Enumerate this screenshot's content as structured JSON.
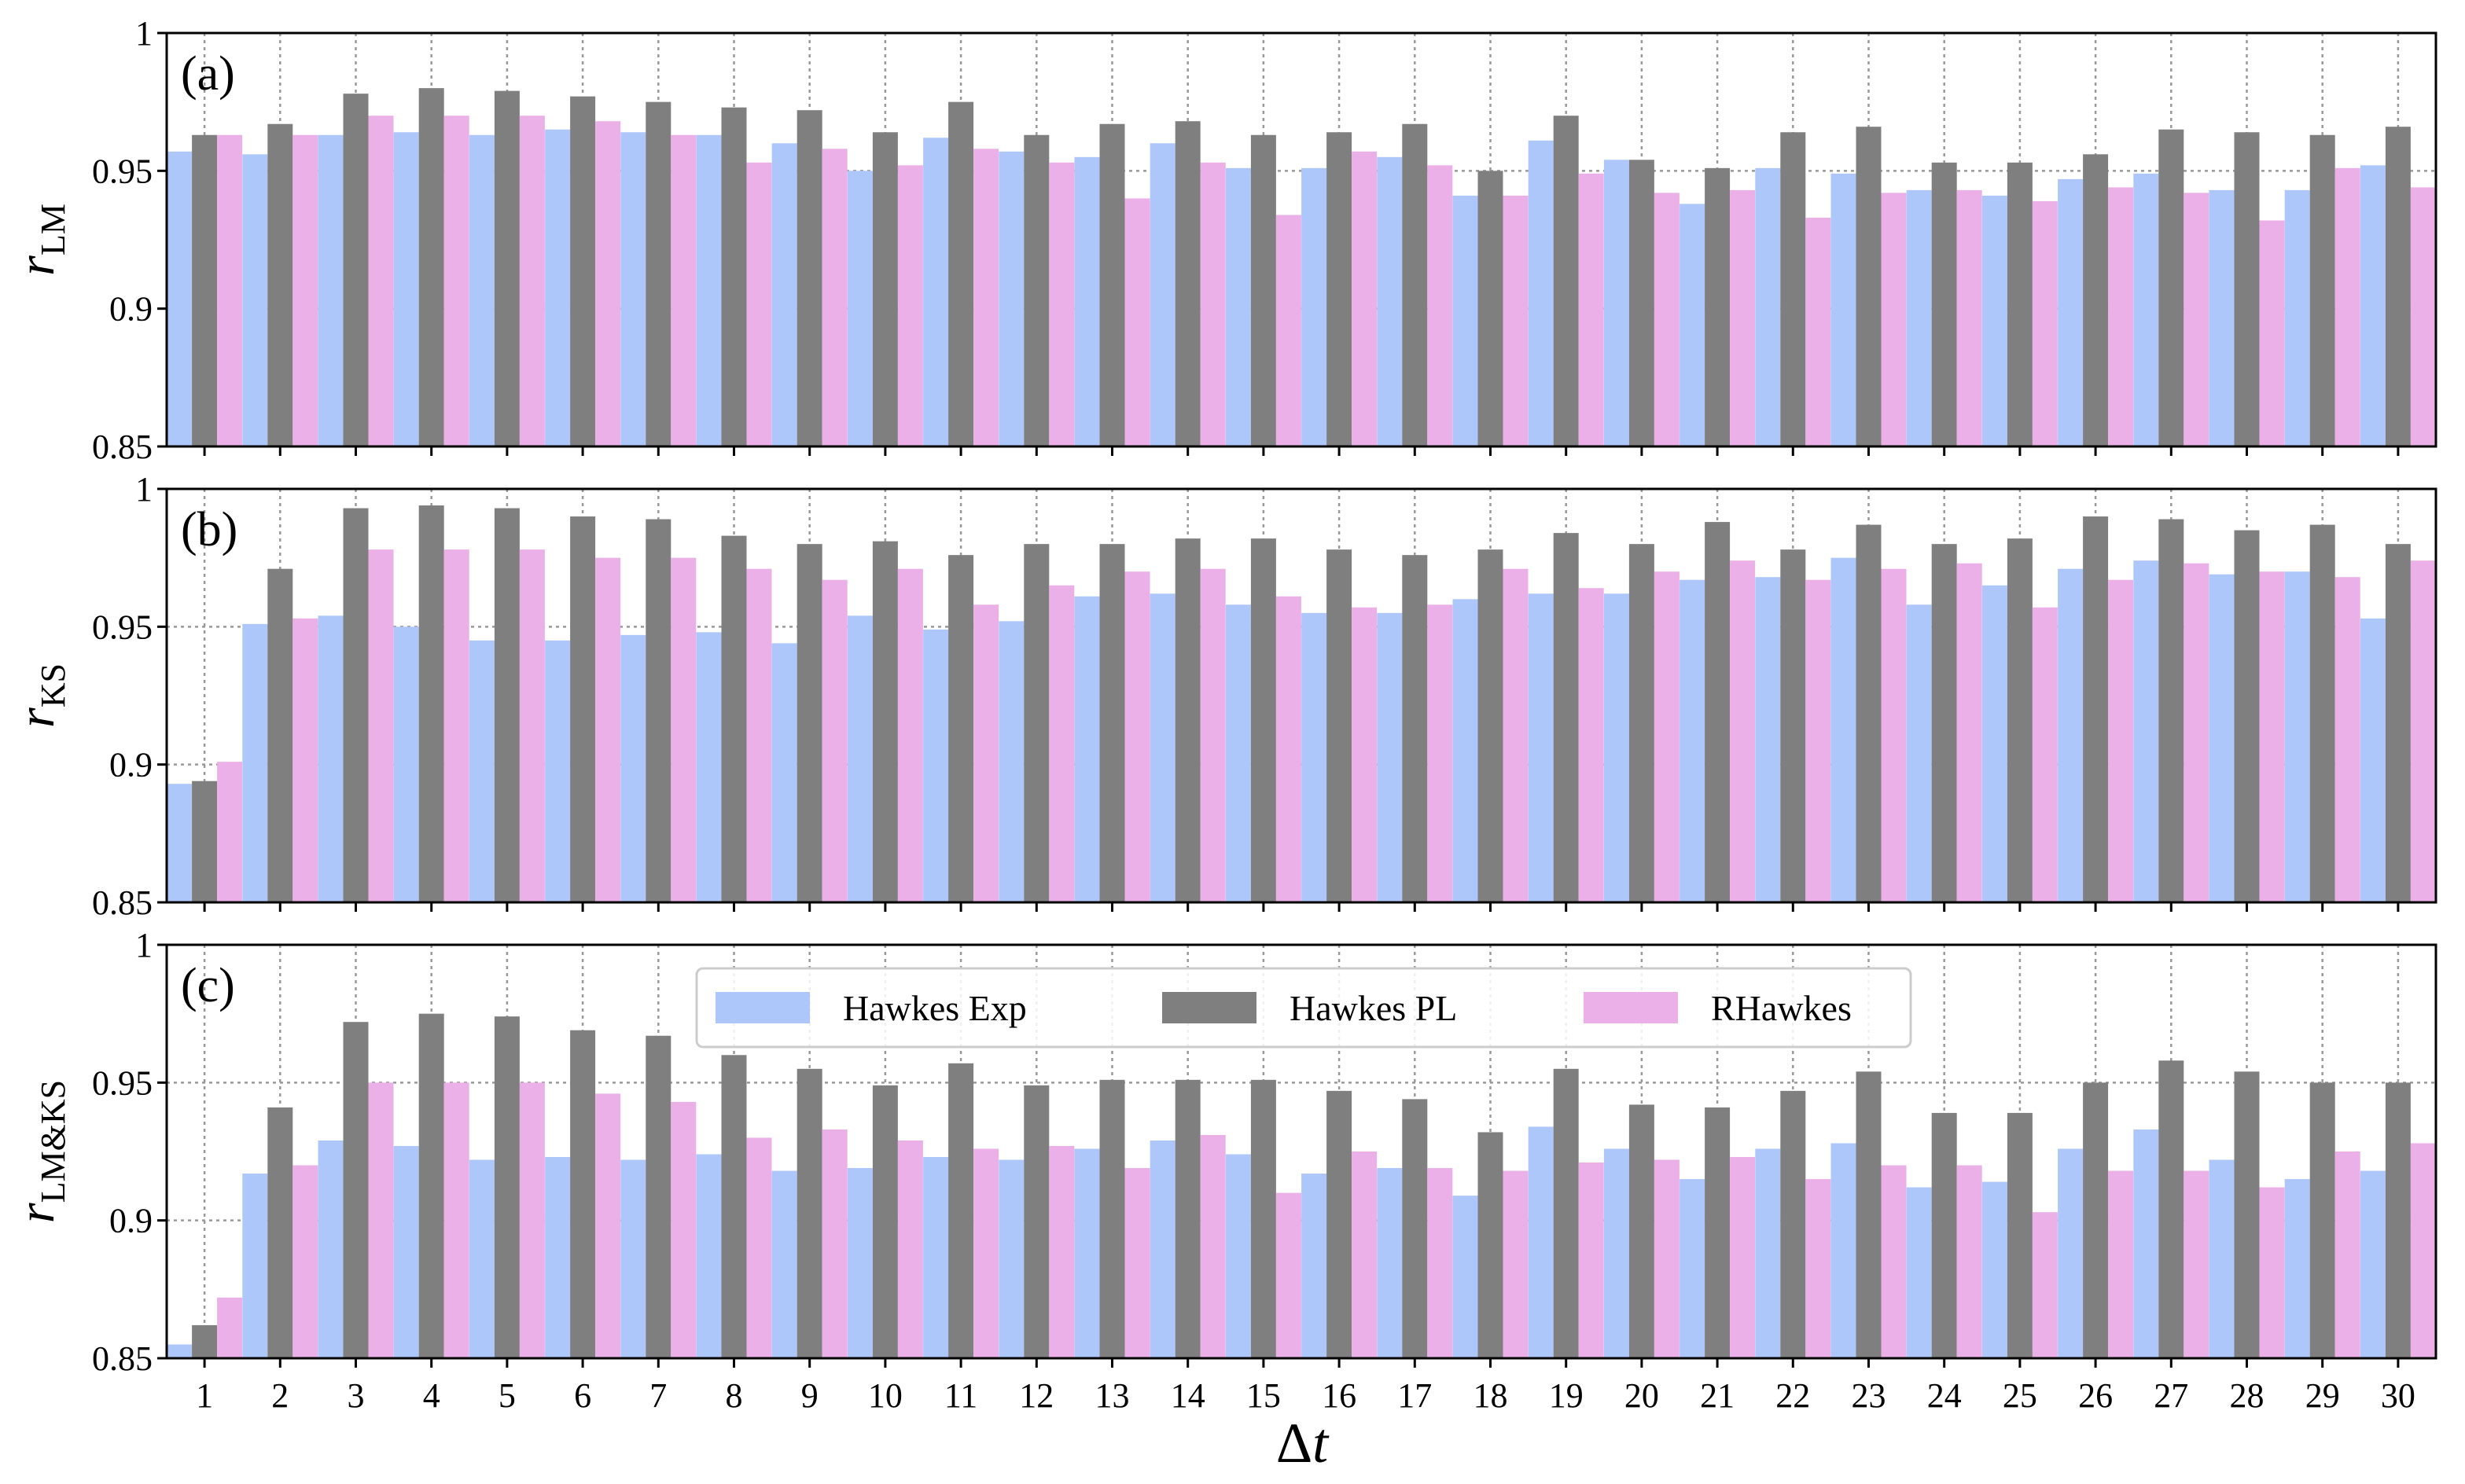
{
  "colors": {
    "Hawkes Exp": "#aec7fa",
    "Hawkes PL": "#7f7f7f",
    "RHawkes": "#ecb0e8",
    "grid": "#999999",
    "frame": "#000000"
  },
  "x_label_delta": "Δ",
  "x_label_var": "t",
  "legend": {
    "entries": [
      "Hawkes Exp",
      "Hawkes PL",
      "RHawkes"
    ],
    "placement": "top-center of panel (c)"
  },
  "chart_data": [
    {
      "type": "bar",
      "panel": "(a)",
      "ylabel_var": "r",
      "ylabel_sub": "LM",
      "xlabel": "Δt",
      "ylim": [
        0.85,
        1.0
      ],
      "yticks": [
        0.85,
        0.9,
        0.95,
        1.0
      ],
      "ytick_labels": [
        "0.85",
        "0.9",
        "0.95",
        "1"
      ],
      "grid": true,
      "categories": [
        "1",
        "2",
        "3",
        "4",
        "5",
        "6",
        "7",
        "8",
        "9",
        "10",
        "11",
        "12",
        "13",
        "14",
        "15",
        "16",
        "17",
        "18",
        "19",
        "20",
        "21",
        "22",
        "23",
        "24",
        "25",
        "26",
        "27",
        "28",
        "29",
        "30"
      ],
      "series": [
        {
          "name": "Hawkes Exp",
          "values": [
            0.957,
            0.956,
            0.963,
            0.964,
            0.963,
            0.965,
            0.964,
            0.963,
            0.96,
            0.95,
            0.962,
            0.957,
            0.955,
            0.96,
            0.951,
            0.951,
            0.955,
            0.941,
            0.961,
            0.954,
            0.938,
            0.951,
            0.949,
            0.943,
            0.941,
            0.947,
            0.949,
            0.943,
            0.943,
            0.952
          ]
        },
        {
          "name": "Hawkes PL",
          "values": [
            0.963,
            0.967,
            0.978,
            0.98,
            0.979,
            0.977,
            0.975,
            0.973,
            0.972,
            0.964,
            0.975,
            0.963,
            0.967,
            0.968,
            0.963,
            0.964,
            0.967,
            0.95,
            0.97,
            0.954,
            0.951,
            0.964,
            0.966,
            0.953,
            0.953,
            0.956,
            0.965,
            0.964,
            0.963,
            0.966
          ]
        },
        {
          "name": "RHawkes",
          "values": [
            0.963,
            0.963,
            0.97,
            0.97,
            0.97,
            0.968,
            0.963,
            0.953,
            0.958,
            0.952,
            0.958,
            0.953,
            0.94,
            0.953,
            0.934,
            0.957,
            0.952,
            0.941,
            0.949,
            0.942,
            0.943,
            0.933,
            0.942,
            0.943,
            0.939,
            0.944,
            0.942,
            0.932,
            0.951,
            0.944
          ]
        }
      ]
    },
    {
      "type": "bar",
      "panel": "(b)",
      "ylabel_var": "r",
      "ylabel_sub": "KS",
      "xlabel": "Δt",
      "ylim": [
        0.85,
        1.0
      ],
      "yticks": [
        0.85,
        0.9,
        0.95,
        1.0
      ],
      "ytick_labels": [
        "0.85",
        "0.9",
        "0.95",
        "1"
      ],
      "grid": true,
      "categories": [
        "1",
        "2",
        "3",
        "4",
        "5",
        "6",
        "7",
        "8",
        "9",
        "10",
        "11",
        "12",
        "13",
        "14",
        "15",
        "16",
        "17",
        "18",
        "19",
        "20",
        "21",
        "22",
        "23",
        "24",
        "25",
        "26",
        "27",
        "28",
        "29",
        "30"
      ],
      "series": [
        {
          "name": "Hawkes Exp",
          "values": [
            0.893,
            0.951,
            0.954,
            0.95,
            0.945,
            0.945,
            0.947,
            0.948,
            0.944,
            0.954,
            0.949,
            0.952,
            0.961,
            0.962,
            0.958,
            0.955,
            0.955,
            0.96,
            0.962,
            0.962,
            0.967,
            0.968,
            0.975,
            0.958,
            0.965,
            0.971,
            0.974,
            0.969,
            0.97,
            0.953
          ]
        },
        {
          "name": "Hawkes PL",
          "values": [
            0.894,
            0.971,
            0.993,
            0.994,
            0.993,
            0.99,
            0.989,
            0.983,
            0.98,
            0.981,
            0.976,
            0.98,
            0.98,
            0.982,
            0.982,
            0.978,
            0.976,
            0.978,
            0.984,
            0.98,
            0.988,
            0.978,
            0.987,
            0.98,
            0.982,
            0.99,
            0.989,
            0.985,
            0.987,
            0.98
          ]
        },
        {
          "name": "RHawkes",
          "values": [
            0.901,
            0.953,
            0.978,
            0.978,
            0.978,
            0.975,
            0.975,
            0.971,
            0.967,
            0.971,
            0.958,
            0.965,
            0.97,
            0.971,
            0.961,
            0.957,
            0.958,
            0.971,
            0.964,
            0.97,
            0.974,
            0.967,
            0.971,
            0.973,
            0.957,
            0.967,
            0.973,
            0.97,
            0.968,
            0.974
          ]
        }
      ]
    },
    {
      "type": "bar",
      "panel": "(c)",
      "ylabel_var": "r",
      "ylabel_sub": "LM&KS",
      "xlabel": "Δt",
      "ylim": [
        0.85,
        1.0
      ],
      "yticks": [
        0.85,
        0.9,
        0.95,
        1.0
      ],
      "ytick_labels": [
        "0.85",
        "0.9",
        "0.95",
        "1"
      ],
      "grid": true,
      "categories": [
        "1",
        "2",
        "3",
        "4",
        "5",
        "6",
        "7",
        "8",
        "9",
        "10",
        "11",
        "12",
        "13",
        "14",
        "15",
        "16",
        "17",
        "18",
        "19",
        "20",
        "21",
        "22",
        "23",
        "24",
        "25",
        "26",
        "27",
        "28",
        "29",
        "30"
      ],
      "series": [
        {
          "name": "Hawkes Exp",
          "values": [
            0.855,
            0.917,
            0.929,
            0.927,
            0.922,
            0.923,
            0.922,
            0.924,
            0.918,
            0.919,
            0.923,
            0.922,
            0.926,
            0.929,
            0.924,
            0.917,
            0.919,
            0.909,
            0.934,
            0.926,
            0.915,
            0.926,
            0.928,
            0.912,
            0.914,
            0.926,
            0.933,
            0.922,
            0.915,
            0.918
          ]
        },
        {
          "name": "Hawkes PL",
          "values": [
            0.862,
            0.941,
            0.972,
            0.975,
            0.974,
            0.969,
            0.967,
            0.96,
            0.955,
            0.949,
            0.957,
            0.949,
            0.951,
            0.951,
            0.951,
            0.947,
            0.944,
            0.932,
            0.955,
            0.942,
            0.941,
            0.947,
            0.954,
            0.939,
            0.939,
            0.95,
            0.958,
            0.954,
            0.95,
            0.95
          ]
        },
        {
          "name": "RHawkes",
          "values": [
            0.872,
            0.92,
            0.95,
            0.95,
            0.95,
            0.946,
            0.943,
            0.93,
            0.933,
            0.929,
            0.926,
            0.927,
            0.919,
            0.931,
            0.91,
            0.925,
            0.919,
            0.918,
            0.921,
            0.922,
            0.923,
            0.915,
            0.92,
            0.92,
            0.903,
            0.918,
            0.918,
            0.912,
            0.925,
            0.928
          ]
        }
      ]
    }
  ]
}
